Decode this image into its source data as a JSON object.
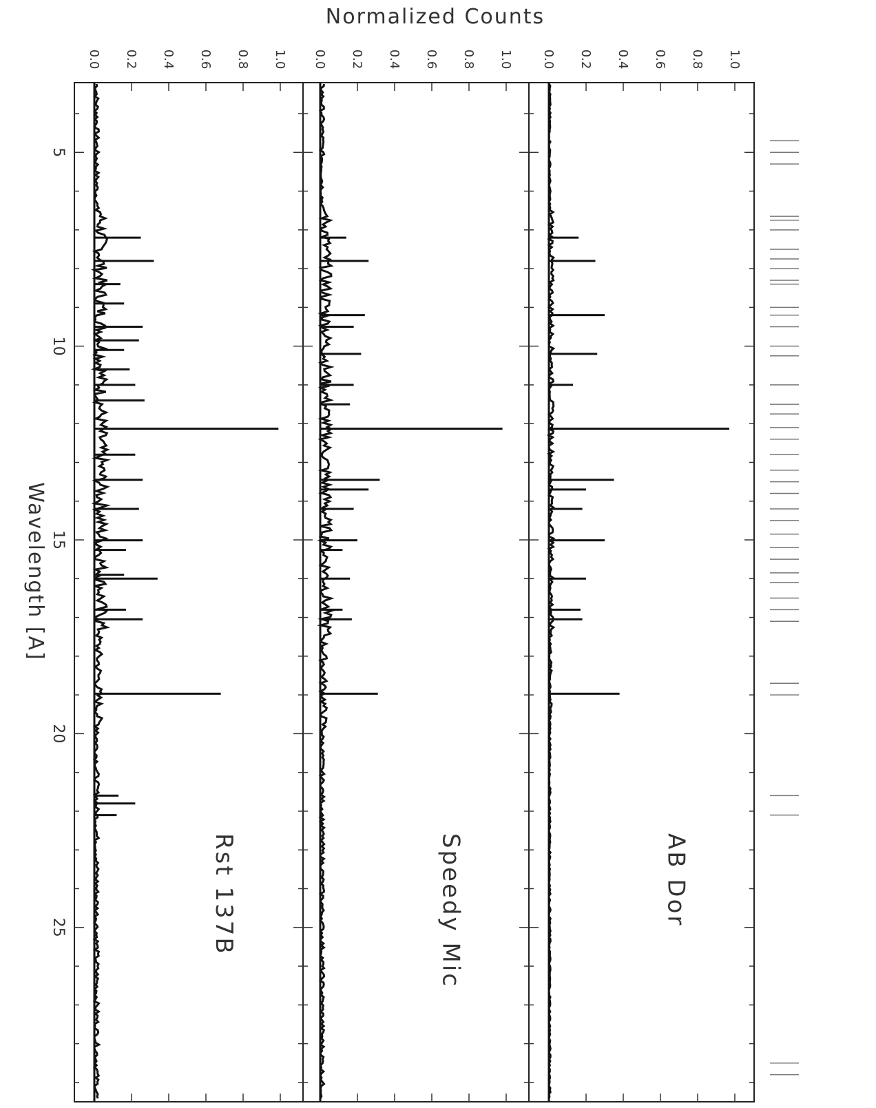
{
  "figure": {
    "ylabel": "Normalized Counts",
    "xlabel": "Wavelength [A]"
  },
  "chart_data": {
    "type": "line",
    "orientation": "rotated-90",
    "xlabel": "Wavelength [A]",
    "ylabel": "Normalized Counts",
    "xlim": [
      3.2,
      29.5
    ],
    "ylim": [
      0.0,
      1.0
    ],
    "x_ticks": [
      "5",
      "10",
      "15",
      "20",
      "25"
    ],
    "y_ticks": [
      "0.0",
      "0.2",
      "0.4",
      "0.6",
      "0.8",
      "1.0"
    ],
    "panels": [
      {
        "name": "Rst 137B",
        "lines": [
          {
            "x": 7.2,
            "y": 0.25
          },
          {
            "x": 7.8,
            "y": 0.32
          },
          {
            "x": 8.4,
            "y": 0.14
          },
          {
            "x": 8.9,
            "y": 0.16
          },
          {
            "x": 9.5,
            "y": 0.26
          },
          {
            "x": 9.85,
            "y": 0.24
          },
          {
            "x": 10.1,
            "y": 0.16
          },
          {
            "x": 10.6,
            "y": 0.19
          },
          {
            "x": 11.0,
            "y": 0.22
          },
          {
            "x": 11.4,
            "y": 0.27
          },
          {
            "x": 12.13,
            "y": 0.99
          },
          {
            "x": 12.8,
            "y": 0.22
          },
          {
            "x": 13.45,
            "y": 0.26
          },
          {
            "x": 14.2,
            "y": 0.24
          },
          {
            "x": 15.01,
            "y": 0.26
          },
          {
            "x": 15.26,
            "y": 0.17
          },
          {
            "x": 15.9,
            "y": 0.16
          },
          {
            "x": 16.0,
            "y": 0.34
          },
          {
            "x": 16.8,
            "y": 0.17
          },
          {
            "x": 17.05,
            "y": 0.26
          },
          {
            "x": 18.97,
            "y": 0.68
          },
          {
            "x": 21.6,
            "y": 0.13
          },
          {
            "x": 21.8,
            "y": 0.22
          },
          {
            "x": 22.1,
            "y": 0.12
          }
        ]
      },
      {
        "name": "Speedy Mic",
        "lines": [
          {
            "x": 7.2,
            "y": 0.14
          },
          {
            "x": 7.8,
            "y": 0.26
          },
          {
            "x": 9.2,
            "y": 0.24
          },
          {
            "x": 9.5,
            "y": 0.18
          },
          {
            "x": 10.2,
            "y": 0.22
          },
          {
            "x": 11.0,
            "y": 0.18
          },
          {
            "x": 11.5,
            "y": 0.16
          },
          {
            "x": 12.13,
            "y": 0.98
          },
          {
            "x": 13.45,
            "y": 0.32
          },
          {
            "x": 13.7,
            "y": 0.26
          },
          {
            "x": 14.2,
            "y": 0.18
          },
          {
            "x": 15.01,
            "y": 0.2
          },
          {
            "x": 15.26,
            "y": 0.12
          },
          {
            "x": 16.0,
            "y": 0.16
          },
          {
            "x": 16.8,
            "y": 0.12
          },
          {
            "x": 17.05,
            "y": 0.17
          },
          {
            "x": 18.97,
            "y": 0.31
          }
        ]
      },
      {
        "name": "AB Dor",
        "lines": [
          {
            "x": 7.2,
            "y": 0.16
          },
          {
            "x": 7.8,
            "y": 0.25
          },
          {
            "x": 9.2,
            "y": 0.3
          },
          {
            "x": 10.2,
            "y": 0.26
          },
          {
            "x": 11.0,
            "y": 0.13
          },
          {
            "x": 12.13,
            "y": 0.97
          },
          {
            "x": 13.45,
            "y": 0.35
          },
          {
            "x": 13.7,
            "y": 0.2
          },
          {
            "x": 14.2,
            "y": 0.18
          },
          {
            "x": 15.01,
            "y": 0.3
          },
          {
            "x": 16.0,
            "y": 0.2
          },
          {
            "x": 16.8,
            "y": 0.17
          },
          {
            "x": 17.05,
            "y": 0.18
          },
          {
            "x": 18.97,
            "y": 0.38
          }
        ]
      }
    ]
  },
  "line_ids": {
    "marks": [
      {
        "x": 4.7
      },
      {
        "x": 5.0
      },
      {
        "x": 5.3
      },
      {
        "x": 6.65
      },
      {
        "x": 6.75
      },
      {
        "x": 7.0
      },
      {
        "x": 7.5
      },
      {
        "x": 7.75
      },
      {
        "x": 8.0
      },
      {
        "x": 8.3
      },
      {
        "x": 8.4
      },
      {
        "x": 9.0
      },
      {
        "x": 9.2
      },
      {
        "x": 9.5
      },
      {
        "x": 10.0
      },
      {
        "x": 10.25
      },
      {
        "x": 11.0
      },
      {
        "x": 11.5
      },
      {
        "x": 11.75
      },
      {
        "x": 12.1
      },
      {
        "x": 12.4
      },
      {
        "x": 12.8
      },
      {
        "x": 13.2
      },
      {
        "x": 13.5
      },
      {
        "x": 13.8
      },
      {
        "x": 14.2
      },
      {
        "x": 14.5
      },
      {
        "x": 14.85
      },
      {
        "x": 15.2
      },
      {
        "x": 15.5
      },
      {
        "x": 15.85
      },
      {
        "x": 16.1
      },
      {
        "x": 16.5
      },
      {
        "x": 16.8
      },
      {
        "x": 17.1
      },
      {
        "x": 18.7
      },
      {
        "x": 19.0
      },
      {
        "x": 21.6
      },
      {
        "x": 22.1
      },
      {
        "x": 28.5
      },
      {
        "x": 28.8
      }
    ]
  }
}
